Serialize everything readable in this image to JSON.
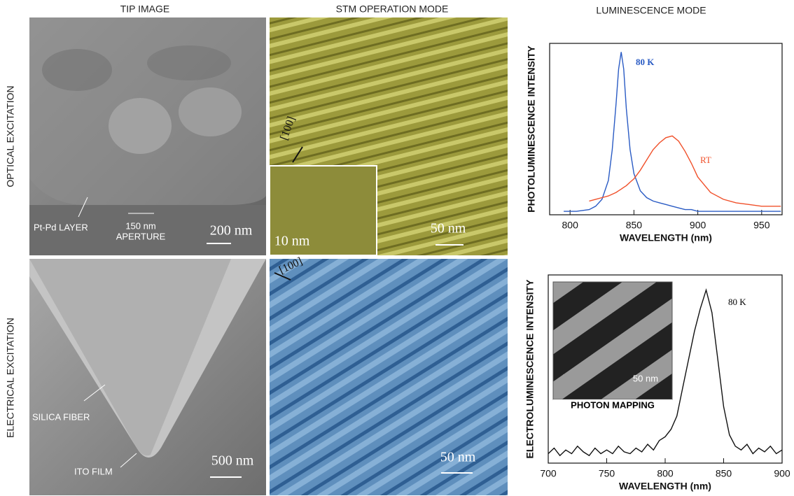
{
  "headers": [
    "TIP IMAGE",
    "STM OPERATION MODE",
    "LUMINESCENCE MODE"
  ],
  "row_labels": [
    "OPTICAL EXCITATION",
    "ELECTRICAL EXCITATION"
  ],
  "panels": {
    "tip_optical": {
      "layer": "Pt-Pd LAYER",
      "aperture_size": "150 nm",
      "aperture": "APERTURE",
      "scale": "200 nm"
    },
    "stm_optical": {
      "direction": "[100]",
      "inset_scale": "10 nm",
      "scale": "50 nm"
    },
    "tip_electrical": {
      "fiber": "SILICA FIBER",
      "film": "ITO FILM",
      "scale": "500 nm"
    },
    "stm_electrical": {
      "direction": "[100]",
      "scale": "50 nm"
    }
  },
  "chart_data": [
    {
      "type": "line",
      "ylabel": "PHOTOLUMINESCENCE INTENSITY",
      "xlabel": "WAVELENGTH (nm)",
      "x": [
        795,
        805,
        815,
        820,
        825,
        830,
        833,
        836,
        838,
        840,
        842,
        844,
        847,
        850,
        855,
        860,
        865,
        870,
        875,
        880,
        885,
        890,
        895,
        900,
        910,
        920,
        930,
        940,
        950,
        965
      ],
      "series": [
        {
          "name": "80 K",
          "color": "#2a5bc4",
          "values": [
            0.02,
            0.02,
            0.03,
            0.05,
            0.09,
            0.2,
            0.38,
            0.65,
            0.85,
            0.95,
            0.85,
            0.62,
            0.38,
            0.24,
            0.14,
            0.1,
            0.08,
            0.07,
            0.06,
            0.05,
            0.04,
            0.03,
            0.03,
            0.02,
            0.02,
            0.02,
            0.02,
            0.02,
            0.02,
            0.02
          ]
        },
        {
          "name": "RT",
          "color": "#f0502a",
          "values": [
            null,
            null,
            0.08,
            0.09,
            0.1,
            0.11,
            0.12,
            0.13,
            0.14,
            0.15,
            0.16,
            0.17,
            0.19,
            0.21,
            0.26,
            0.32,
            0.38,
            0.42,
            0.45,
            0.46,
            0.43,
            0.37,
            0.3,
            0.22,
            0.13,
            0.09,
            0.07,
            0.06,
            0.05,
            0.05
          ]
        }
      ],
      "xlim": [
        784,
        966
      ],
      "ylim": [
        0,
        1
      ],
      "xticks": [
        800,
        850,
        900,
        950
      ]
    },
    {
      "type": "line",
      "ylabel": "ELECTROLUMINESCENCE INTENSITY",
      "xlabel": "WAVELENGTH (nm)",
      "annotations": [
        "80 K"
      ],
      "inset": [
        "PHOTON MAPPING",
        "50 nm"
      ],
      "x": [
        700,
        705,
        710,
        715,
        720,
        725,
        730,
        735,
        740,
        745,
        750,
        755,
        760,
        765,
        770,
        775,
        780,
        785,
        790,
        795,
        800,
        805,
        810,
        815,
        820,
        825,
        830,
        835,
        840,
        845,
        850,
        855,
        860,
        865,
        870,
        875,
        880,
        885,
        890,
        895,
        900
      ],
      "series": [
        {
          "color": "#111111",
          "values": [
            0.05,
            0.08,
            0.04,
            0.07,
            0.05,
            0.09,
            0.06,
            0.04,
            0.08,
            0.05,
            0.07,
            0.05,
            0.09,
            0.06,
            0.05,
            0.08,
            0.06,
            0.1,
            0.07,
            0.12,
            0.14,
            0.18,
            0.25,
            0.4,
            0.55,
            0.7,
            0.82,
            0.92,
            0.8,
            0.55,
            0.3,
            0.15,
            0.09,
            0.07,
            0.1,
            0.05,
            0.08,
            0.06,
            0.09,
            0.05,
            0.07
          ]
        }
      ],
      "xlim": [
        700,
        900
      ],
      "ylim": [
        0,
        1
      ],
      "xticks": [
        700,
        750,
        800,
        850,
        900
      ]
    }
  ]
}
